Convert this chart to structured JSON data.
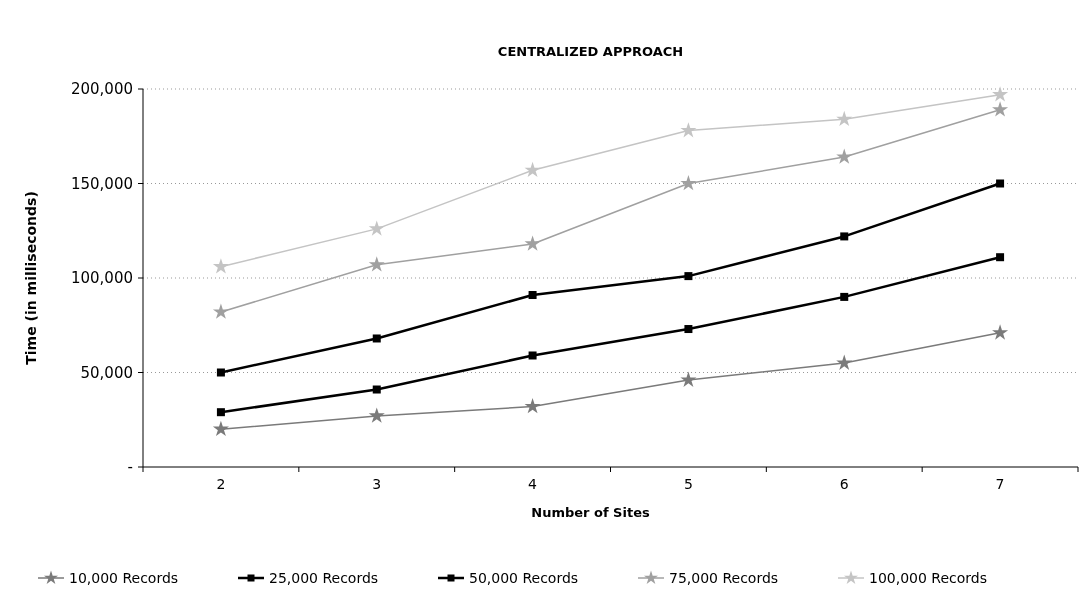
{
  "chart_data": {
    "type": "line",
    "title": "CENTRALIZED APPROACH",
    "xlabel": "Number of Sites",
    "ylabel": "Time (in milliseconds)",
    "categories": [
      "2",
      "3",
      "4",
      "5",
      "6",
      "7"
    ],
    "series": [
      {
        "name": "10,000 Records",
        "color": "#7a7a7a",
        "marker": "star",
        "values": [
          20000,
          27000,
          32000,
          46000,
          55000,
          71000
        ]
      },
      {
        "name": "25,000 Records",
        "color": "#000000",
        "marker": "square",
        "values": [
          29000,
          41000,
          59000,
          73000,
          90000,
          111000
        ]
      },
      {
        "name": "50,000 Records",
        "color": "#000000",
        "marker": "square",
        "values": [
          50000,
          68000,
          91000,
          101000,
          122000,
          150000
        ]
      },
      {
        "name": "75,000 Records",
        "color": "#a0a0a0",
        "marker": "star",
        "values": [
          82000,
          107000,
          118000,
          150000,
          164000,
          189000
        ]
      },
      {
        "name": "100,000 Records",
        "color": "#c4c4c4",
        "marker": "star",
        "values": [
          106000,
          126000,
          157000,
          178000,
          184000,
          197000
        ]
      }
    ],
    "ylim": [
      0,
      200000
    ],
    "yticks": [
      {
        "value": 0,
        "label": "-"
      },
      {
        "value": 50000,
        "label": "50,000"
      },
      {
        "value": 100000,
        "label": "100,000"
      },
      {
        "value": 150000,
        "label": "150,000"
      },
      {
        "value": 200000,
        "label": "200,000"
      }
    ],
    "grid": "y",
    "legend": "bottom"
  }
}
